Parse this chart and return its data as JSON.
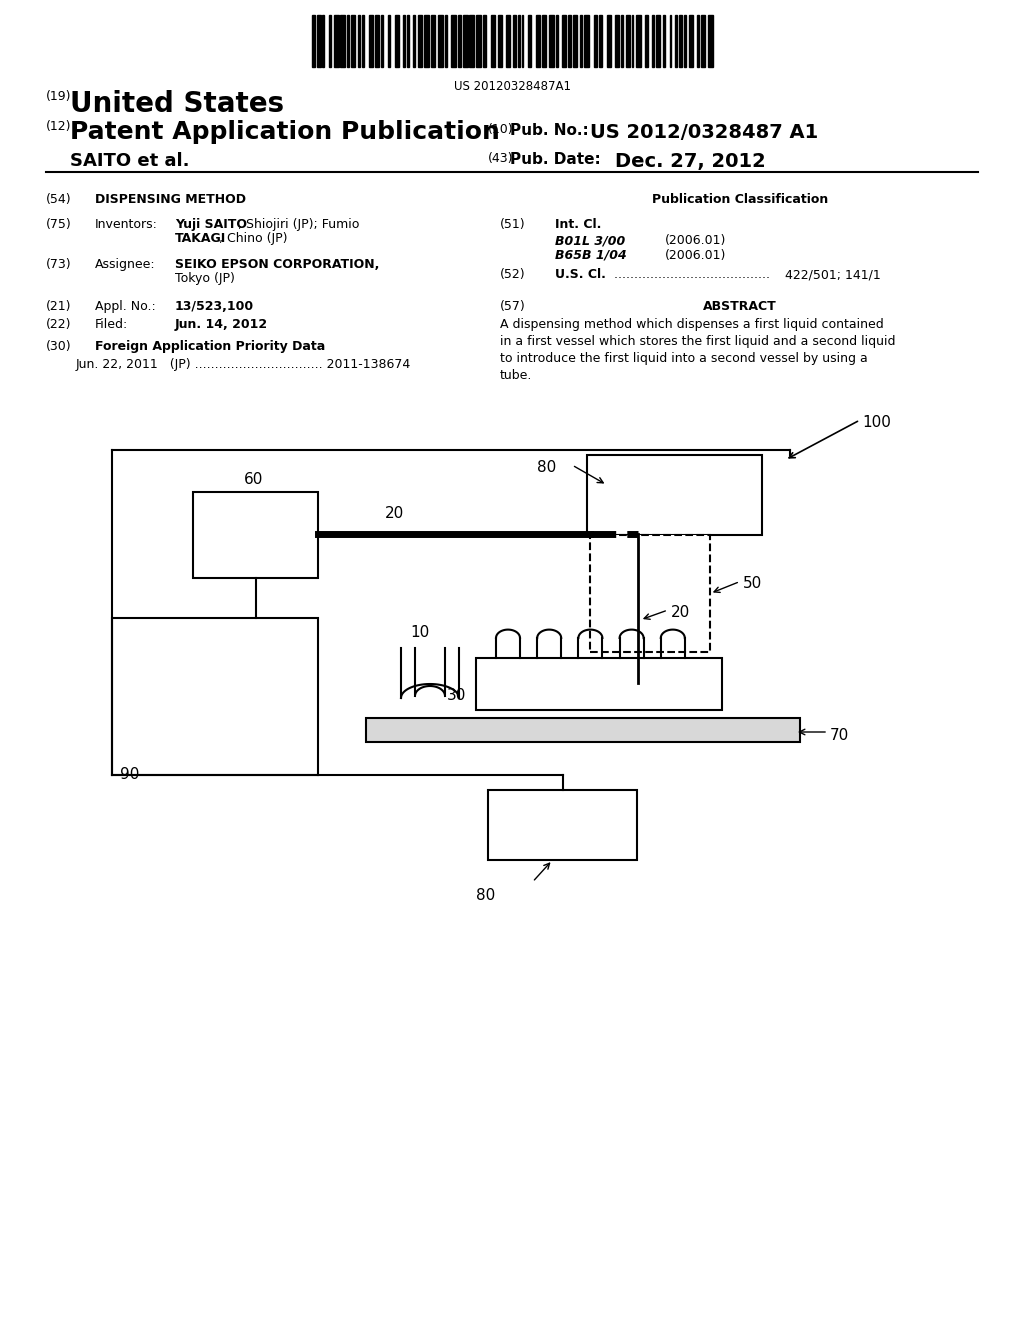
{
  "background_color": "#ffffff",
  "barcode_text": "US 20120328487A1",
  "diagram": {
    "label_100": "100",
    "label_90": "90",
    "label_60": "60",
    "label_20a": "20",
    "label_80a": "80",
    "label_50": "50",
    "label_20b": "20",
    "label_10": "10",
    "label_30": "30",
    "label_70": "70",
    "label_80b": "80"
  }
}
